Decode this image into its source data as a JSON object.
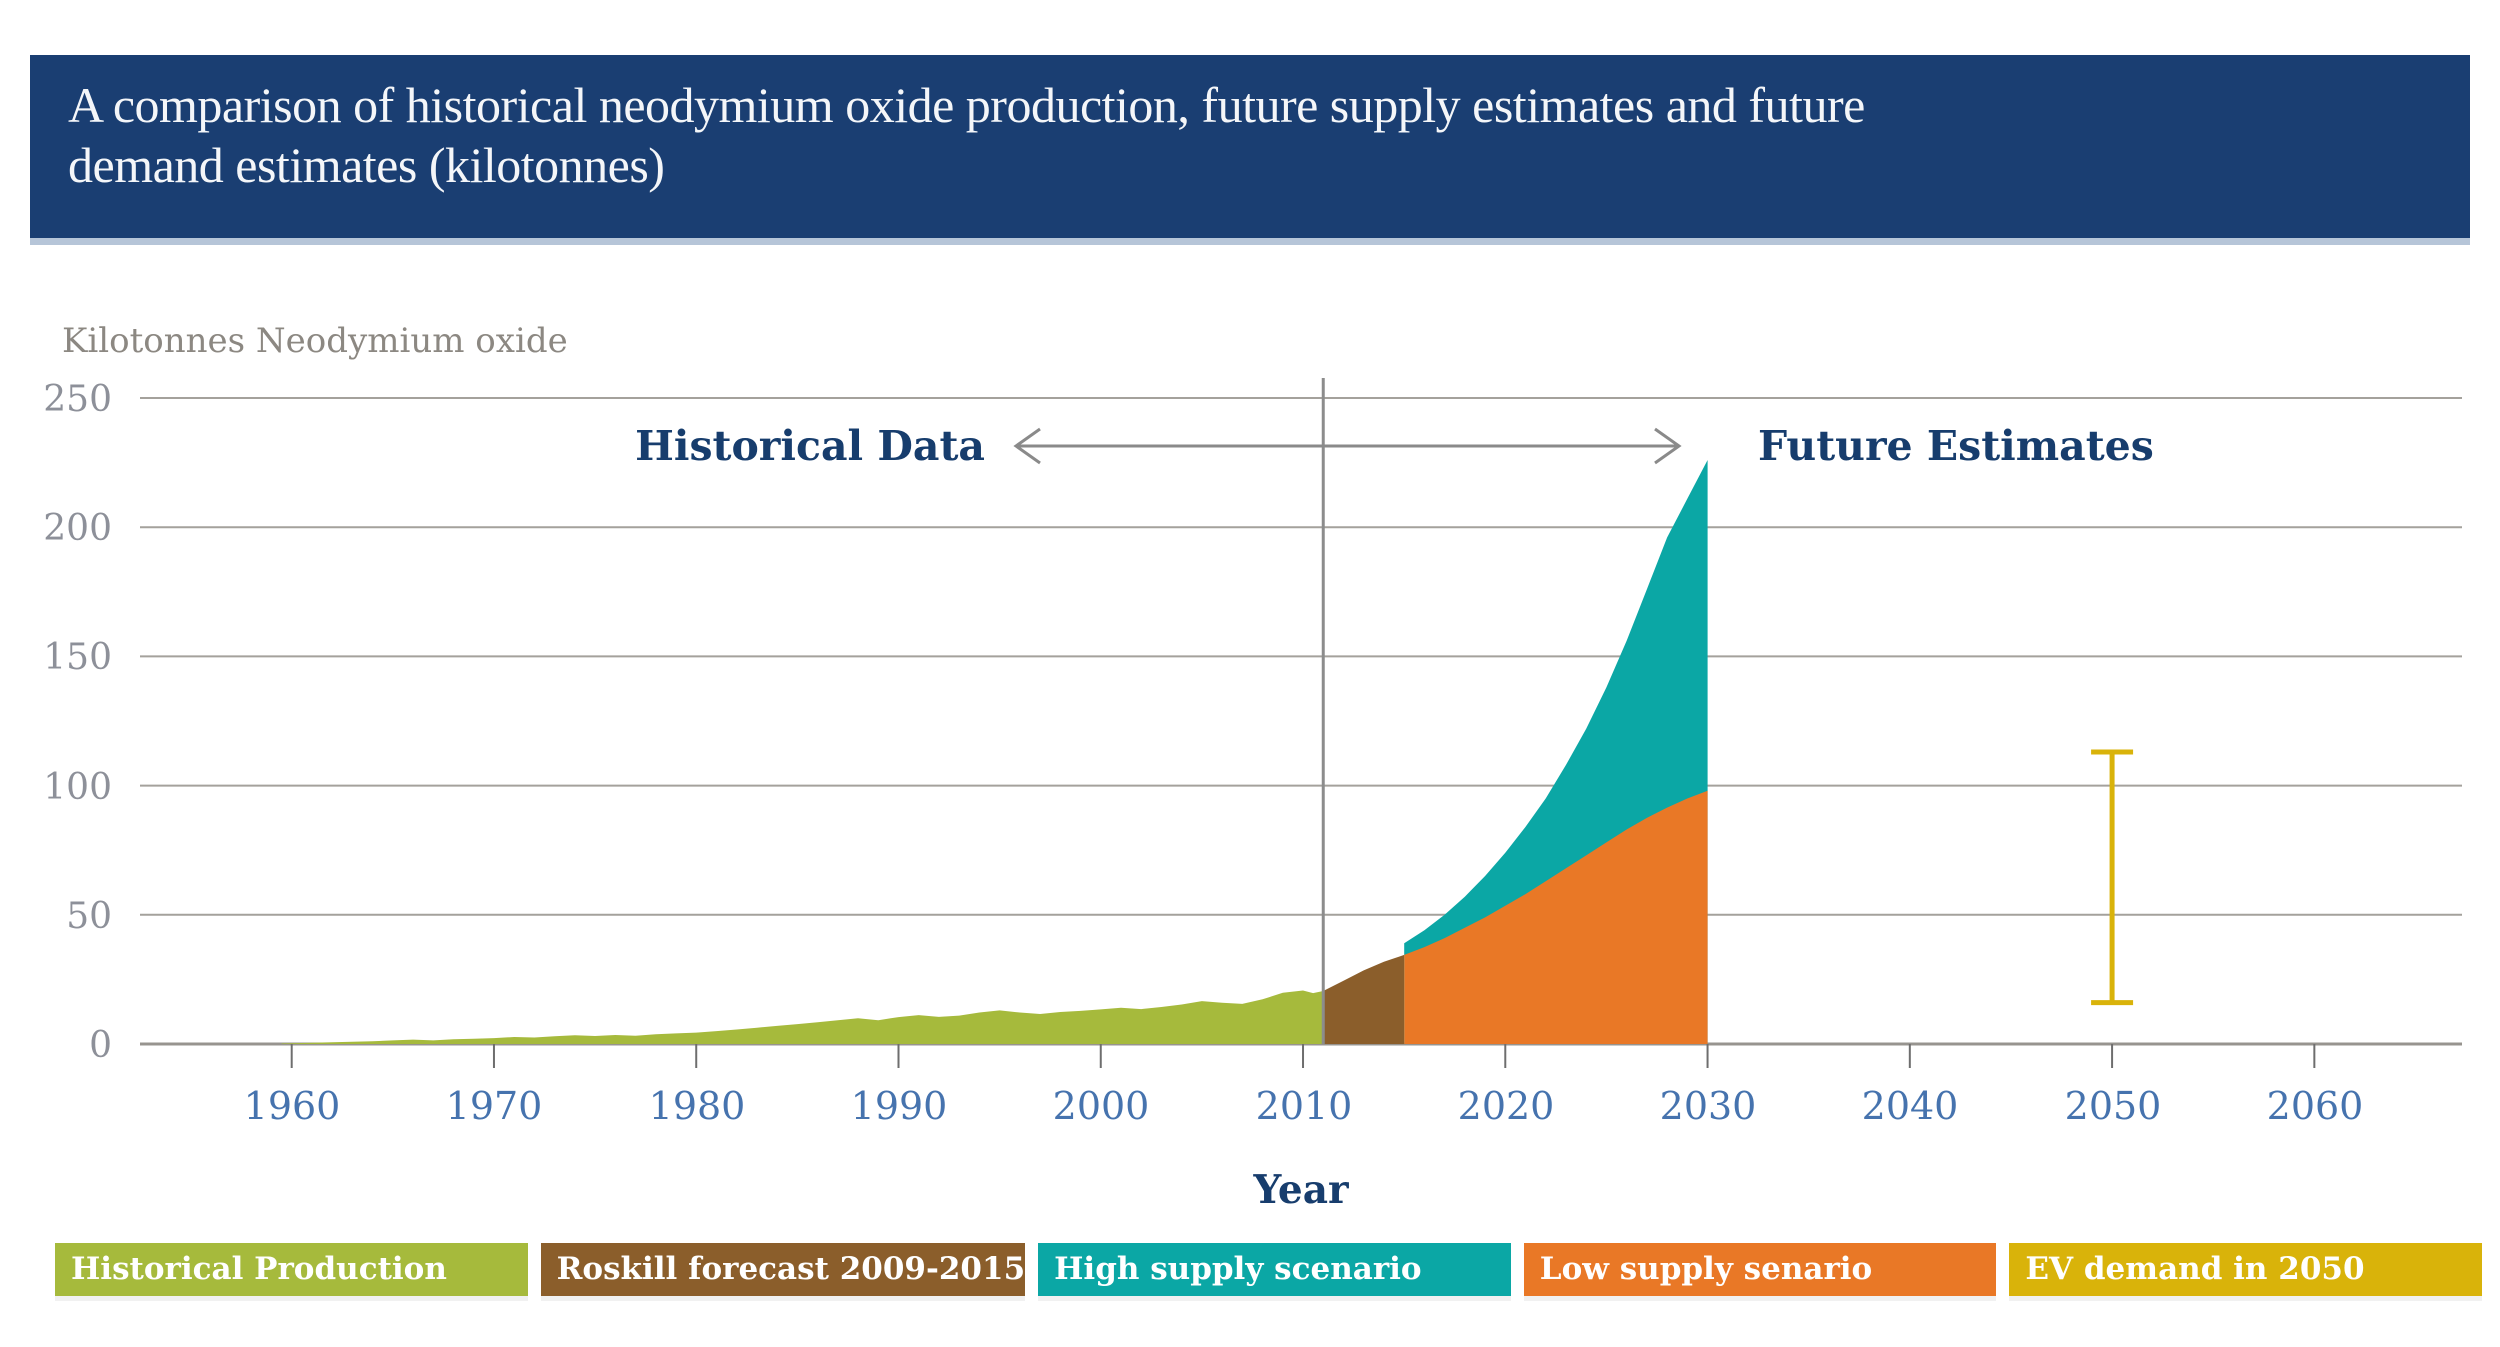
{
  "header": {
    "title_line1": "A comparison of historical neodymium oxide production, future supply estimates and future",
    "title_line2": "demand estimates (kilotonnes)"
  },
  "chart_data": {
    "type": "area",
    "unit_label": "Kilotonnes Neodymium oxide",
    "xlabel": "Year",
    "annotations": {
      "historical": "Historical Data",
      "future": "Future Estimates"
    },
    "x_ticks": [
      1960,
      1970,
      1980,
      1990,
      2000,
      2010,
      2020,
      2030,
      2040,
      2050,
      2060
    ],
    "y_ticks": [
      0,
      50,
      100,
      150,
      200,
      250
    ],
    "xlim": [
      1952.5,
      2067.3
    ],
    "ylim": [
      0,
      250
    ],
    "divider_year": 2011,
    "grid": "horizontal",
    "series": [
      {
        "name": "Historical Production",
        "kind": "area",
        "color": "#a6ba3c",
        "points": [
          [
            1959.5,
            0.2
          ],
          [
            1961,
            0.5
          ],
          [
            1962,
            0.7
          ],
          [
            1963,
            0.9
          ],
          [
            1964,
            1.1
          ],
          [
            1965,
            1.4
          ],
          [
            1966,
            1.7
          ],
          [
            1967,
            1.4
          ],
          [
            1968,
            1.8
          ],
          [
            1969,
            2.0
          ],
          [
            1970,
            2.3
          ],
          [
            1971,
            2.7
          ],
          [
            1972,
            2.5
          ],
          [
            1973,
            3.0
          ],
          [
            1974,
            3.4
          ],
          [
            1975,
            3.1
          ],
          [
            1976,
            3.5
          ],
          [
            1977,
            3.2
          ],
          [
            1978,
            3.8
          ],
          [
            1979,
            4.1
          ],
          [
            1980,
            4.4
          ],
          [
            1981,
            5.0
          ],
          [
            1982,
            5.6
          ],
          [
            1983,
            6.3
          ],
          [
            1984,
            7.0
          ],
          [
            1985,
            7.7
          ],
          [
            1986,
            8.4
          ],
          [
            1987,
            9.2
          ],
          [
            1988,
            10.0
          ],
          [
            1989,
            9.2
          ],
          [
            1990,
            10.4
          ],
          [
            1991,
            11.2
          ],
          [
            1992,
            10.5
          ],
          [
            1993,
            11.0
          ],
          [
            1994,
            12.2
          ],
          [
            1995,
            13.0
          ],
          [
            1996,
            12.2
          ],
          [
            1997,
            11.6
          ],
          [
            1998,
            12.4
          ],
          [
            1999,
            12.8
          ],
          [
            2000,
            13.4
          ],
          [
            2001,
            14.0
          ],
          [
            2002,
            13.5
          ],
          [
            2003,
            14.3
          ],
          [
            2004,
            15.3
          ],
          [
            2005,
            16.6
          ],
          [
            2006,
            16.0
          ],
          [
            2007,
            15.5
          ],
          [
            2008,
            17.3
          ],
          [
            2009,
            19.8
          ],
          [
            2010,
            20.7
          ],
          [
            2010.5,
            19.7
          ],
          [
            2011,
            20.5
          ]
        ]
      },
      {
        "name": "Roskill forecast 2009-2015",
        "kind": "area",
        "color": "#8b5e2b",
        "points": [
          [
            2011,
            20.5
          ],
          [
            2012,
            24.5
          ],
          [
            2013,
            28.5
          ],
          [
            2014,
            31.8
          ],
          [
            2015,
            34.5
          ]
        ]
      },
      {
        "name": "High supply scenario",
        "kind": "area",
        "color": "#0ba7a5",
        "points": [
          [
            2015,
            39
          ],
          [
            2016,
            44
          ],
          [
            2017,
            50
          ],
          [
            2018,
            57
          ],
          [
            2019,
            65
          ],
          [
            2020,
            74
          ],
          [
            2021,
            84
          ],
          [
            2022,
            95
          ],
          [
            2023,
            108
          ],
          [
            2024,
            122
          ],
          [
            2025,
            138
          ],
          [
            2026,
            156
          ],
          [
            2027,
            176
          ],
          [
            2028,
            196
          ],
          [
            2029,
            211
          ],
          [
            2030,
            226
          ]
        ]
      },
      {
        "name": "Low supply senario",
        "kind": "area",
        "color": "#e97826",
        "points": [
          [
            2015,
            34.5
          ],
          [
            2016,
            37.5
          ],
          [
            2017,
            41
          ],
          [
            2018,
            45
          ],
          [
            2019,
            49
          ],
          [
            2020,
            53.5
          ],
          [
            2021,
            58
          ],
          [
            2022,
            63
          ],
          [
            2023,
            68
          ],
          [
            2024,
            73
          ],
          [
            2025,
            78
          ],
          [
            2026,
            83
          ],
          [
            2027,
            87.5
          ],
          [
            2028,
            91.5
          ],
          [
            2029,
            95
          ],
          [
            2030,
            98
          ]
        ]
      },
      {
        "name": "EV demand in 2050",
        "kind": "errorbar",
        "color": "#d9b30a",
        "x": 2050,
        "low": 16,
        "high": 113
      }
    ],
    "legend": [
      {
        "label": "Historical Production",
        "color": "#a6ba3c"
      },
      {
        "label": "Roskill forecast 2009-2015",
        "color": "#8b5e2b"
      },
      {
        "label": "High supply scenario",
        "color": "#0ba7a5"
      },
      {
        "label": "Low supply senario",
        "color": "#e97826"
      },
      {
        "label": "EV demand in 2050",
        "color": "#d9b30a"
      }
    ]
  }
}
